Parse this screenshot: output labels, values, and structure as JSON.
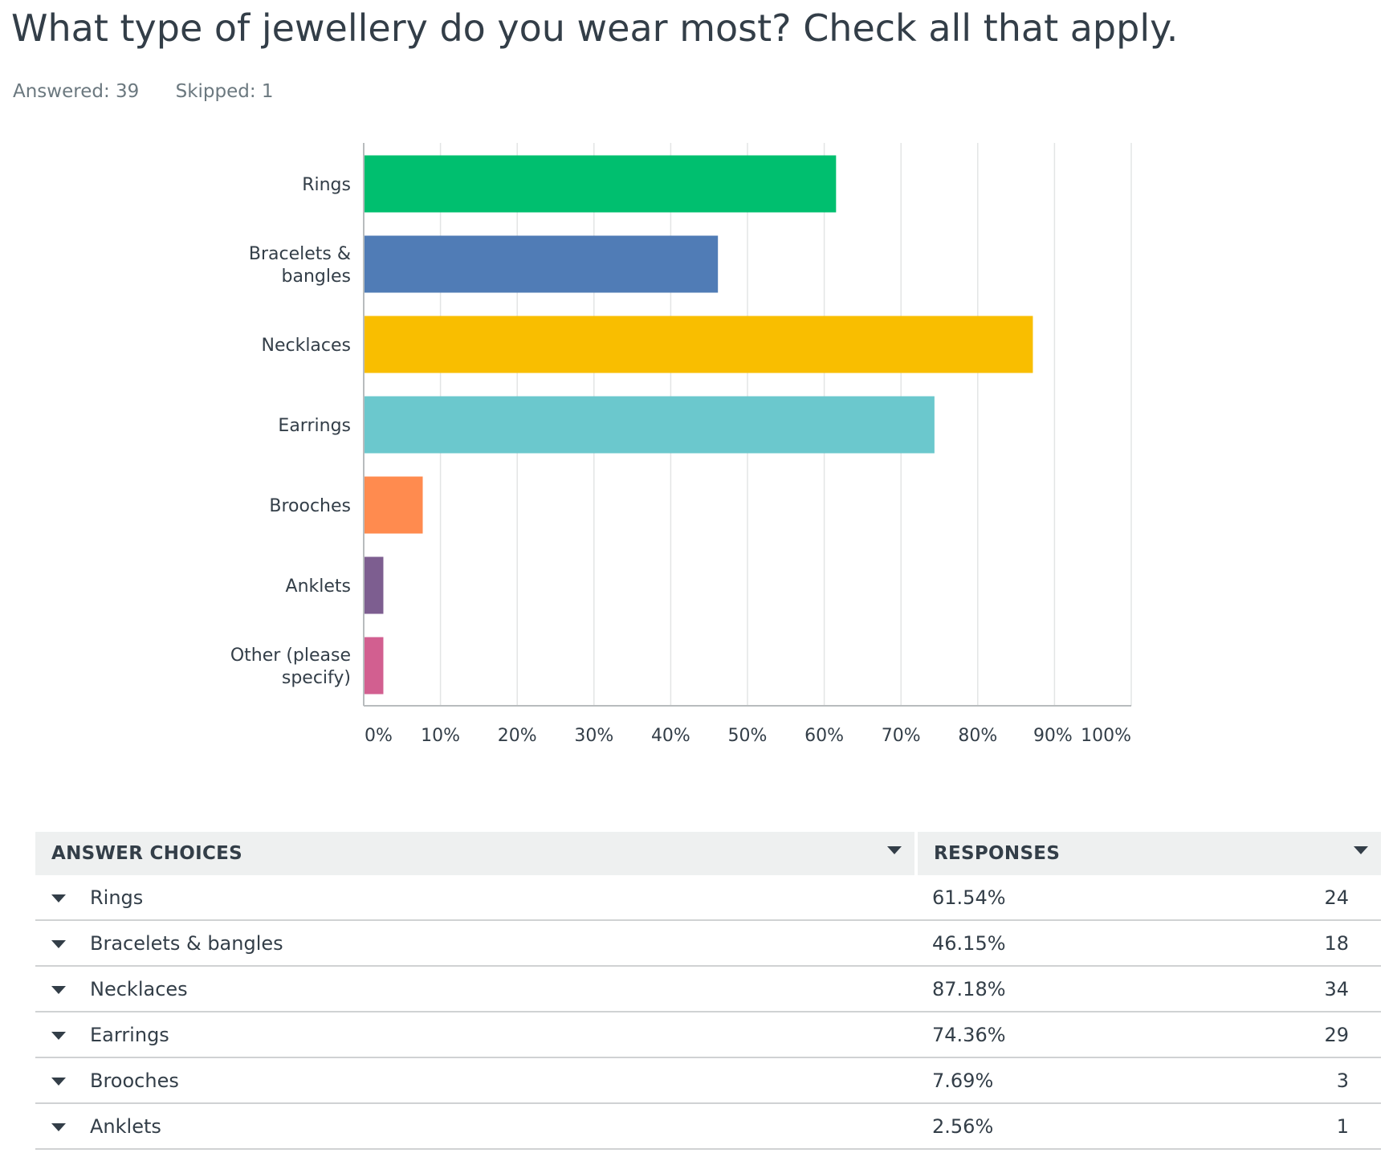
{
  "question": {
    "title": "What type of jewellery do you wear most? Check all that apply.",
    "answered": "Answered: 39",
    "skipped": "Skipped: 1"
  },
  "chart_data": {
    "type": "bar",
    "orientation": "horizontal",
    "categories": [
      "Rings",
      "Bracelets & bangles",
      "Necklaces",
      "Earrings",
      "Brooches",
      "Anklets",
      "Other (please specify)"
    ],
    "category_label_lines": [
      [
        "Rings"
      ],
      [
        "Bracelets &",
        "bangles"
      ],
      [
        "Necklaces"
      ],
      [
        "Earrings"
      ],
      [
        "Brooches"
      ],
      [
        "Anklets"
      ],
      [
        "Other (please",
        "specify)"
      ]
    ],
    "values": [
      61.54,
      46.15,
      87.18,
      74.36,
      7.69,
      2.56,
      2.56
    ],
    "colors": [
      "#00bf6f",
      "#507cb6",
      "#f9be00",
      "#6bc8cd",
      "#ff8b4f",
      "#7d5e90",
      "#d25f90"
    ],
    "xlim": [
      0,
      100
    ],
    "x_ticks": [
      "0%",
      "10%",
      "20%",
      "30%",
      "40%",
      "50%",
      "60%",
      "70%",
      "80%",
      "90%",
      "100%"
    ],
    "grid": true,
    "title": "",
    "xlabel": "",
    "ylabel": ""
  },
  "table": {
    "headers": {
      "choices": "ANSWER CHOICES",
      "responses": "RESPONSES"
    },
    "rows": [
      {
        "choice": "Rings",
        "percent": "61.54%",
        "count": "24"
      },
      {
        "choice": "Bracelets & bangles",
        "percent": "46.15%",
        "count": "18"
      },
      {
        "choice": "Necklaces",
        "percent": "87.18%",
        "count": "34"
      },
      {
        "choice": "Earrings",
        "percent": "74.36%",
        "count": "29"
      },
      {
        "choice": "Brooches",
        "percent": "7.69%",
        "count": "3"
      },
      {
        "choice": "Anklets",
        "percent": "2.56%",
        "count": "1"
      }
    ]
  }
}
